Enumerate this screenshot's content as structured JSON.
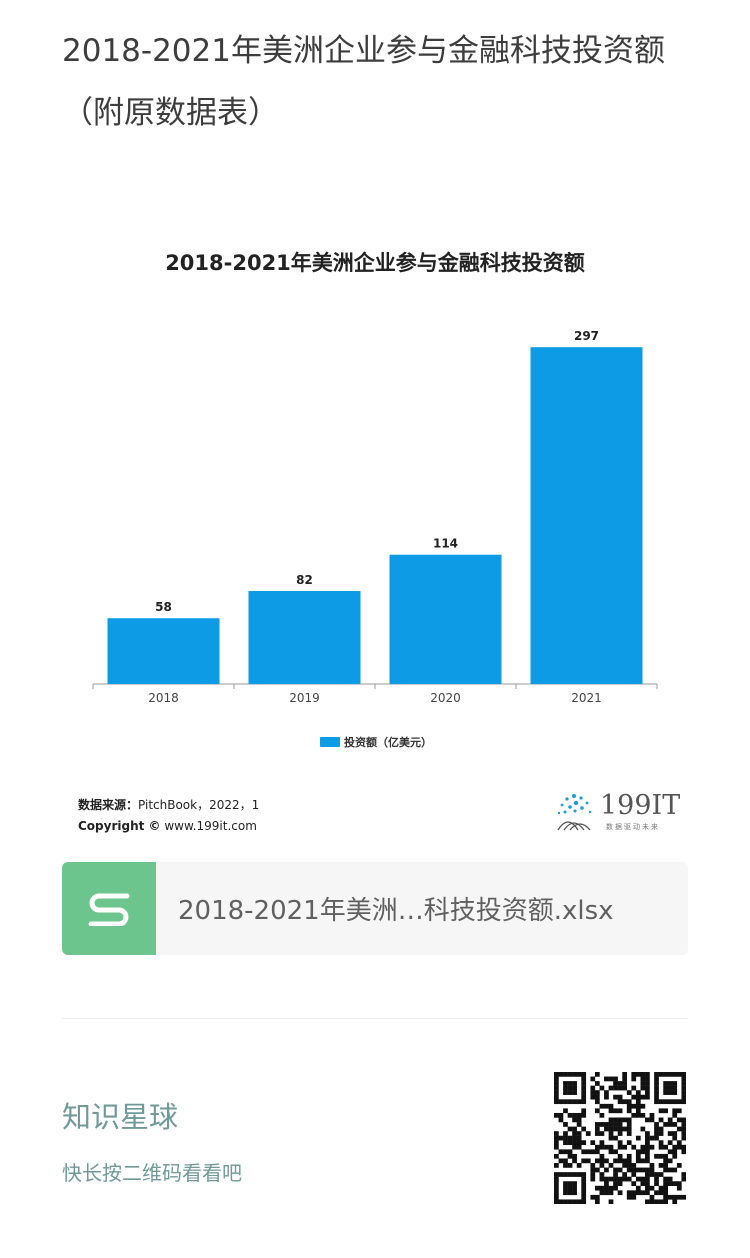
{
  "article": {
    "title": "2018-2021年美洲企业参与金融科技投资额（附原数据表）"
  },
  "chart_data": {
    "type": "bar",
    "title": "2018-2021年美洲企业参与金融科技投资额",
    "categories": [
      "2018",
      "2019",
      "2020",
      "2021"
    ],
    "series": [
      {
        "name": "投资额（亿美元）",
        "values": [
          58,
          82,
          114,
          297
        ],
        "color": "#0e9be5"
      }
    ],
    "xlabel": "",
    "ylabel": "",
    "ylim": [
      0,
      300
    ],
    "grid": false,
    "legend": "bottom-center",
    "data_labels": true
  },
  "source": {
    "label": "数据来源：",
    "text": "PitchBook，2022，1",
    "copyright_label": "Copyright ©",
    "copyright_text": " www.199it.com"
  },
  "logo": {
    "text": "199IT",
    "tagline": "数据驱动未来"
  },
  "attachment": {
    "file_name": "2018-2021年美洲…科技投资额.xlsx",
    "icon": "spreadsheet-s-icon",
    "icon_color": "#6cc58c"
  },
  "footer": {
    "title": "知识星球",
    "subtitle": "快长按二维码看看吧"
  }
}
